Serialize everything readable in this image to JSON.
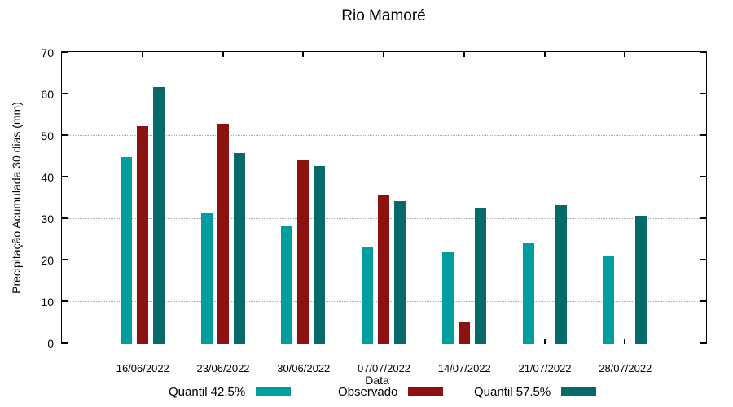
{
  "chart_data": {
    "type": "bar",
    "title": "Rio Mamoré",
    "xlabel": "Data",
    "ylabel": "Precipitação Acumulada 30 dias (mm)",
    "ylim": [
      0,
      70
    ],
    "yticks": [
      0,
      10,
      20,
      30,
      40,
      50,
      60,
      70
    ],
    "grid": "horizontal dotted lines at 10,20,30,40,50,60",
    "legend_position": "bottom",
    "categories": [
      "16/06/2022",
      "23/06/2022",
      "30/06/2022",
      "07/07/2022",
      "14/07/2022",
      "21/07/2022",
      "28/07/2022"
    ],
    "series": [
      {
        "name": "Quantil 42.5%",
        "color": "#009E9E",
        "values": [
          45.0,
          31.3,
          28.2,
          23.1,
          22.1,
          24.3,
          21.0
        ]
      },
      {
        "name": "Observado",
        "color": "#8C1111",
        "values": [
          52.3,
          53.0,
          44.2,
          35.8,
          5.3,
          null,
          null
        ]
      },
      {
        "name": "Quantil 57.5%",
        "color": "#076A6A",
        "values": [
          61.8,
          45.8,
          42.7,
          34.3,
          32.5,
          33.4,
          30.7
        ]
      }
    ]
  }
}
